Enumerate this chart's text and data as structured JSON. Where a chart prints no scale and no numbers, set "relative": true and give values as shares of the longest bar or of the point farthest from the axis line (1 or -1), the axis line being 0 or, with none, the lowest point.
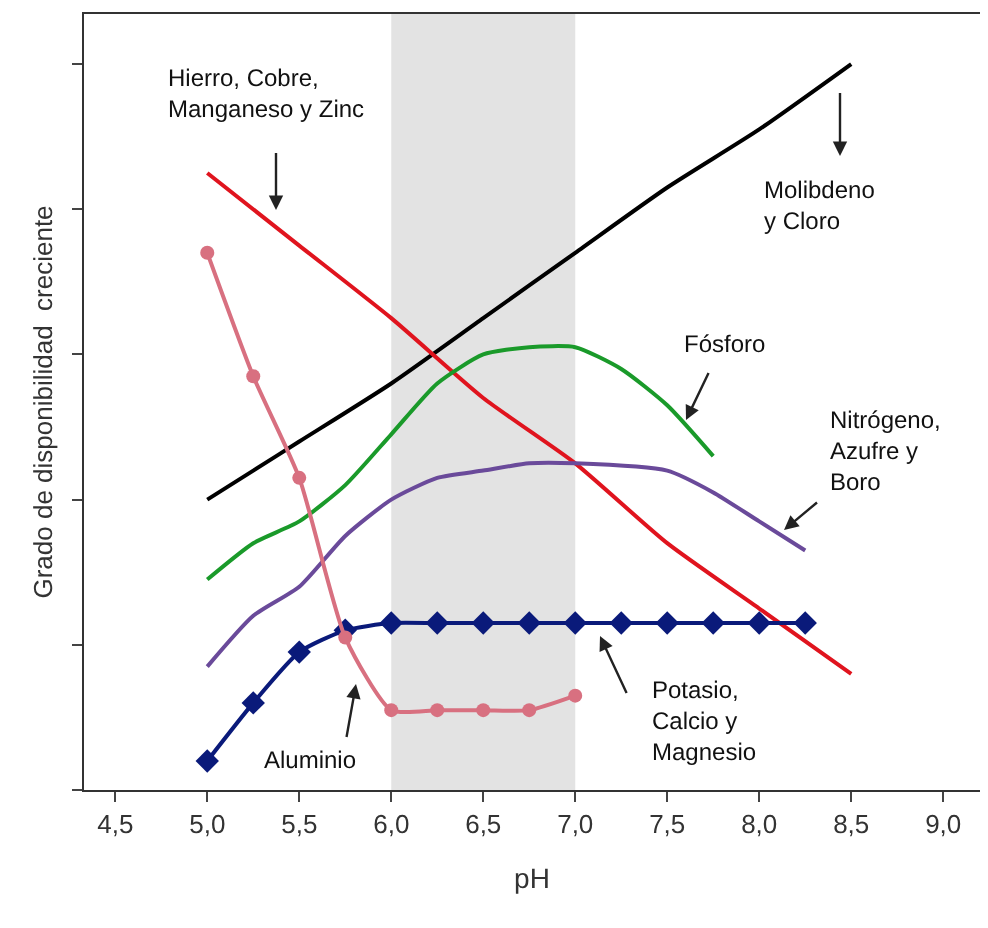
{
  "chart_data": {
    "type": "line",
    "relative": true,
    "xlabel": "pH",
    "ylabel": "Grado de disponibilidad  creciente",
    "xlim": [
      4.33,
      9.2
    ],
    "xticks": [
      {
        "value": 4.5,
        "label": "4,5"
      },
      {
        "value": 5.0,
        "label": "5,0"
      },
      {
        "value": 5.5,
        "label": "5,5"
      },
      {
        "value": 6.0,
        "label": "6,0"
      },
      {
        "value": 6.5,
        "label": "6,5"
      },
      {
        "value": 7.0,
        "label": "7,0"
      },
      {
        "value": 7.5,
        "label": "7,5"
      },
      {
        "value": 8.0,
        "label": "8,0"
      },
      {
        "value": 8.5,
        "label": "8,5"
      },
      {
        "value": 9.0,
        "label": "9,0"
      }
    ],
    "bands": [
      {
        "axis": "x",
        "from": 6.0,
        "to": 7.0,
        "color": "#e3e3e3"
      }
    ],
    "series": [
      {
        "color": "#000000",
        "marker": "none",
        "x": [
          5.0,
          5.25,
          5.5,
          6.0,
          6.5,
          7.0,
          7.5,
          8.0,
          8.5
        ],
        "values": [
          0.4,
          0.44,
          0.48,
          0.56,
          0.65,
          0.74,
          0.83,
          0.91,
          1.0
        ]
      },
      {
        "color": "#e0141e",
        "marker": "none",
        "x": [
          5.0,
          5.5,
          6.0,
          6.5,
          7.0,
          7.5,
          8.0,
          8.5
        ],
        "values": [
          0.85,
          0.75,
          0.65,
          0.54,
          0.45,
          0.34,
          0.25,
          0.16
        ]
      },
      {
        "color": "#1a9a2a",
        "marker": "none",
        "x": [
          5.0,
          5.25,
          5.5,
          5.75,
          6.0,
          6.25,
          6.5,
          6.75,
          7.0,
          7.25,
          7.5,
          7.75
        ],
        "values": [
          0.29,
          0.34,
          0.37,
          0.42,
          0.49,
          0.56,
          0.6,
          0.61,
          0.61,
          0.58,
          0.53,
          0.46
        ]
      },
      {
        "color": "#6a4a9a",
        "marker": "none",
        "x": [
          5.0,
          5.25,
          5.5,
          5.75,
          6.0,
          6.25,
          6.5,
          6.75,
          7.0,
          7.5,
          7.75,
          8.0,
          8.25
        ],
        "values": [
          0.17,
          0.24,
          0.28,
          0.35,
          0.4,
          0.43,
          0.44,
          0.45,
          0.45,
          0.44,
          0.41,
          0.37,
          0.33
        ]
      },
      {
        "color": "#0a1a7a",
        "marker": "diamond",
        "x": [
          5.0,
          5.25,
          5.5,
          5.75,
          6.0,
          6.25,
          6.5,
          6.75,
          7.0,
          7.25,
          7.5,
          7.75,
          8.0,
          8.25
        ],
        "values": [
          0.04,
          0.12,
          0.19,
          0.22,
          0.23,
          0.23,
          0.23,
          0.23,
          0.23,
          0.23,
          0.23,
          0.23,
          0.23,
          0.23
        ]
      },
      {
        "color": "#d87080",
        "marker": "circle",
        "x": [
          5.0,
          5.25,
          5.5,
          5.75,
          6.0,
          6.25,
          6.5,
          6.75,
          7.0
        ],
        "values": [
          0.74,
          0.57,
          0.43,
          0.21,
          0.11,
          0.11,
          0.11,
          0.11,
          0.13
        ]
      }
    ],
    "annotations": [
      "Hierro, Cobre,\nManganeso y Zinc",
      "Molibdeno\ny Cloro",
      "Fósforo",
      "Nitrógeno,\nAzufre y\nBoro",
      "Potasio,\nCalcio y\nMagnesio",
      "Aluminio"
    ]
  }
}
